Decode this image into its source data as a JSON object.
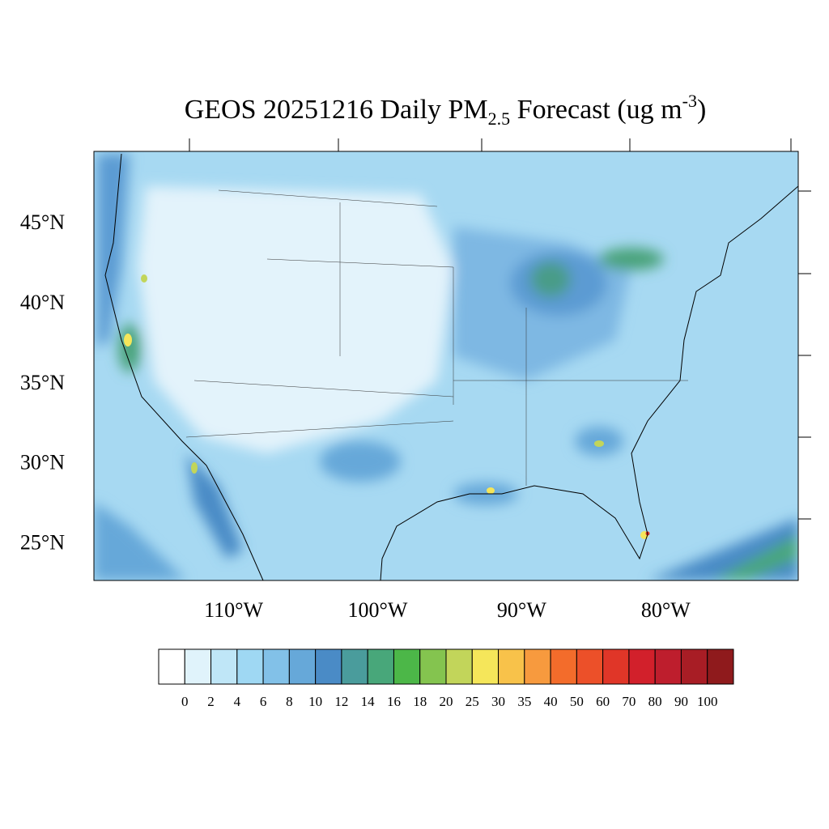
{
  "title": {
    "text": "GEOS 20251216 Daily PM",
    "subscript": "2.5",
    "text2": " Forecast (ug m",
    "superscript": "-3",
    "text3": ")"
  },
  "map": {
    "lon_range": [
      -119.7,
      -70.8
    ],
    "lat_range": [
      22.6,
      49.4
    ],
    "lat_ticks": [
      {
        "value": 45,
        "label": "45°N"
      },
      {
        "value": 40,
        "label": "40°N"
      },
      {
        "value": 35,
        "label": "35°N"
      },
      {
        "value": 30,
        "label": "30°N"
      },
      {
        "value": 25,
        "label": "25°N"
      }
    ],
    "lon_ticks": [
      {
        "value": -110,
        "label": "110°W"
      },
      {
        "value": -100,
        "label": "100°W"
      },
      {
        "value": -90,
        "label": "90°W"
      },
      {
        "value": -80,
        "label": "80°W"
      }
    ]
  },
  "colorbar": {
    "levels": [
      0,
      2,
      4,
      6,
      8,
      10,
      12,
      14,
      16,
      18,
      20,
      25,
      30,
      35,
      40,
      50,
      60,
      70,
      80,
      90,
      100
    ],
    "colors": [
      "#ffffff",
      "#e0f3fb",
      "#bfe6f7",
      "#9fd8f3",
      "#82c1e8",
      "#66a8d9",
      "#4a8bc6",
      "#4a9c9c",
      "#48a77a",
      "#4cb748",
      "#84c44f",
      "#c2d55a",
      "#f5e65a",
      "#f8c24a",
      "#f79a3e",
      "#f36c2b",
      "#ec5029",
      "#e03628",
      "#d2202b",
      "#be1e2d",
      "#a81d25",
      "#8f1a1c"
    ]
  }
}
